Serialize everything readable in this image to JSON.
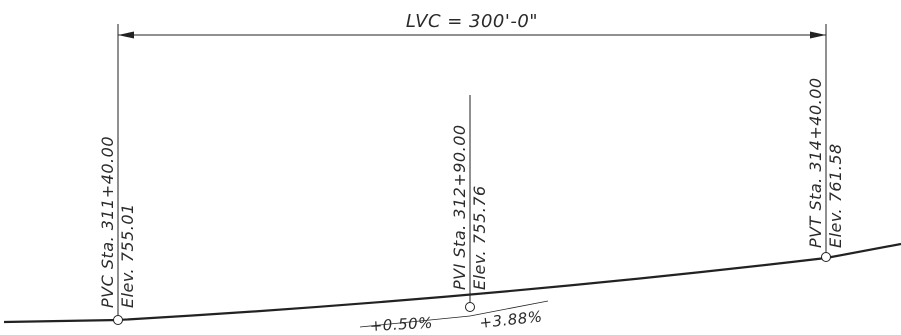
{
  "lvc": {
    "label": "LVC = 300'-0\""
  },
  "pvc": {
    "station": "PVC Sta. 311+40.00",
    "elevation": "Elev. 755.01"
  },
  "pvi": {
    "station": "PVI Sta. 312+90.00",
    "elevation": "Elev. 755.76"
  },
  "pvt": {
    "station": "PVT Sta. 314+40.00",
    "elevation": "Elev. 761.58"
  },
  "grades": {
    "incoming": "+0.50%",
    "outgoing": "+3.88%"
  },
  "colors": {
    "ink": "#222222"
  }
}
